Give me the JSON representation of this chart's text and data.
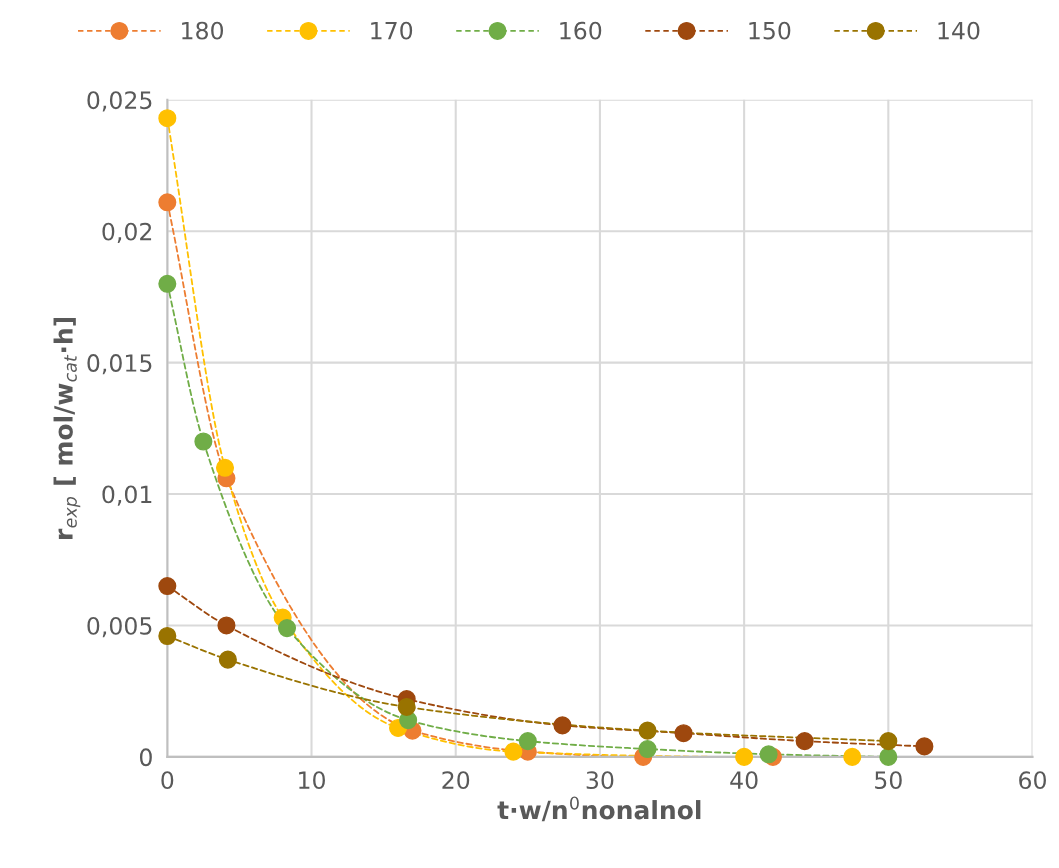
{
  "chart_data": {
    "type": "line",
    "xlabel": "t·w/n$^{0}$nonalnol",
    "ylabel": "r$_{exp}$ [ mol/w$_{cat}$·h]",
    "xlim": [
      0,
      60
    ],
    "xticks": [
      0,
      10,
      20,
      30,
      40,
      50,
      60
    ],
    "ylim": [
      0,
      0.025
    ],
    "yticks": [
      {
        "value": 0,
        "label": "0"
      },
      {
        "value": 0.005,
        "label": "0,005"
      },
      {
        "value": 0.01,
        "label": "0,01"
      },
      {
        "value": 0.015,
        "label": "0,015"
      },
      {
        "value": 0.02,
        "label": "0,02"
      },
      {
        "value": 0.025,
        "label": "0,025"
      }
    ],
    "grid": true,
    "legend": "top",
    "marker": "circle",
    "line_style": "dashed",
    "series": [
      {
        "name": "180",
        "color": "#ed7d31",
        "x": [
          0,
          4.1,
          17,
          25,
          33,
          42
        ],
        "values": [
          0.0211,
          0.0106,
          0.001,
          0.0002,
          0,
          0
        ]
      },
      {
        "name": "170",
        "color": "#ffc000",
        "x": [
          0,
          4,
          8,
          16,
          24,
          40,
          47.5
        ],
        "values": [
          0.0243,
          0.011,
          0.0053,
          0.0011,
          0.0002,
          0,
          0
        ]
      },
      {
        "name": "160",
        "color": "#70ad47",
        "x": [
          0,
          2.5,
          8.3,
          16.7,
          25,
          33.3,
          41.7,
          50
        ],
        "values": [
          0.018,
          0.012,
          0.0049,
          0.0014,
          0.0006,
          0.0003,
          0.0001,
          0
        ]
      },
      {
        "name": "150",
        "color": "#9e480e",
        "x": [
          0,
          4.1,
          16.6,
          27.4,
          35.8,
          44.2,
          52.5
        ],
        "values": [
          0.0065,
          0.005,
          0.0022,
          0.0012,
          0.0009,
          0.0006,
          0.0004
        ]
      },
      {
        "name": "140",
        "color": "#997300",
        "x": [
          0,
          4.2,
          16.6,
          33.3,
          50
        ],
        "values": [
          0.0046,
          0.0037,
          0.0019,
          0.001,
          0.0006
        ]
      }
    ]
  }
}
